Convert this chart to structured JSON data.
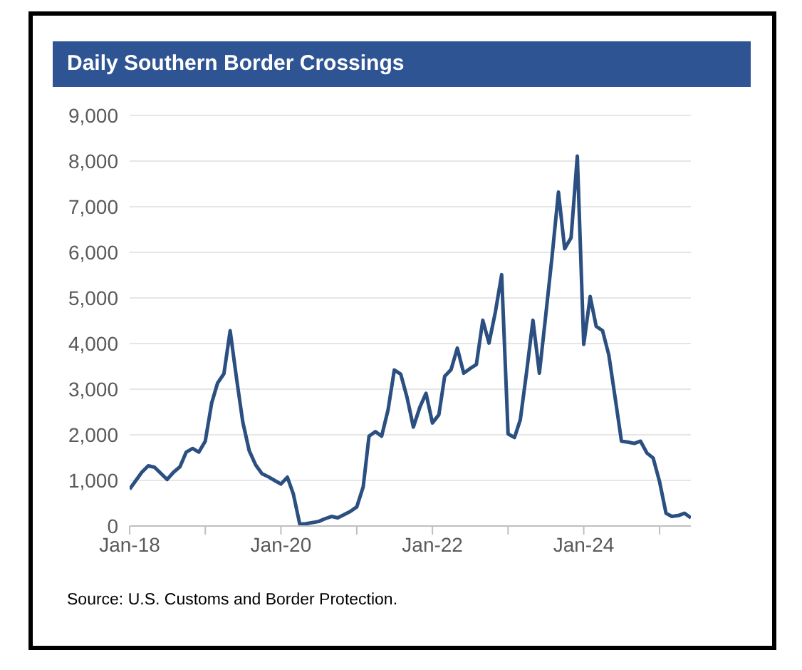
{
  "chart_data": {
    "type": "line",
    "title": "Daily Southern Border Crossings",
    "x": [
      "2018-01",
      "2018-03",
      "2018-04",
      "2018-05",
      "2018-07",
      "2018-08",
      "2018-09",
      "2018-10",
      "2018-11",
      "2018-12",
      "2019-01",
      "2019-02",
      "2019-03",
      "2019-04",
      "2019-05",
      "2019-06",
      "2019-07",
      "2019-08",
      "2019-09",
      "2019-10",
      "2019-11",
      "2019-12",
      "2020-01",
      "2020-02",
      "2020-03",
      "2020-04",
      "2020-05",
      "2020-07",
      "2020-08",
      "2020-09",
      "2020-10",
      "2020-11",
      "2020-12",
      "2021-01",
      "2021-02",
      "2021-03",
      "2021-04",
      "2021-05",
      "2021-06",
      "2021-07",
      "2021-08",
      "2021-09",
      "2021-10",
      "2021-11",
      "2021-12",
      "2022-01",
      "2022-02",
      "2022-03",
      "2022-04",
      "2022-05",
      "2022-06",
      "2022-07",
      "2022-08",
      "2022-09",
      "2022-10",
      "2022-11",
      "2022-12",
      "2023-01",
      "2023-02",
      "2023-03",
      "2023-04",
      "2023-05",
      "2023-06",
      "2023-07",
      "2023-08",
      "2023-09",
      "2023-10",
      "2023-11",
      "2023-12",
      "2024-01",
      "2024-02",
      "2024-03",
      "2024-04",
      "2024-05",
      "2024-06",
      "2024-07",
      "2024-08",
      "2024-09",
      "2024-10",
      "2024-11",
      "2024-12",
      "2025-01",
      "2025-02",
      "2025-03",
      "2025-04",
      "2025-05",
      "2025-06"
    ],
    "series": [
      {
        "color": "#2b4f81",
        "values": [
          810,
          1180,
          1320,
          1290,
          1020,
          1180,
          1300,
          1620,
          1700,
          1620,
          1860,
          2700,
          3130,
          3340,
          4280,
          3230,
          2280,
          1650,
          1340,
          1150,
          1080,
          1000,
          920,
          1070,
          700,
          40,
          50,
          100,
          160,
          210,
          180,
          250,
          320,
          420,
          860,
          1970,
          2070,
          1970,
          2550,
          3420,
          3330,
          2810,
          2170,
          2600,
          2910,
          2260,
          2440,
          3280,
          3430,
          3900,
          3350,
          3450,
          3540,
          4510,
          4010,
          4700,
          5510,
          2020,
          1940,
          2330,
          3400,
          4510,
          3350,
          4590,
          5900,
          7320,
          6080,
          6320,
          8110,
          3980,
          5030,
          4380,
          4280,
          3750,
          2800,
          1860,
          1840,
          1810,
          1860,
          1600,
          1490,
          970,
          280,
          210,
          230,
          280,
          180
        ]
      }
    ],
    "xlim": [
      "2018-01",
      "2025-06"
    ],
    "xticks": [
      {
        "value": "2018-01",
        "label": "Jan-18"
      },
      {
        "value": "2019-01",
        "label": null
      },
      {
        "value": "2020-01",
        "label": "Jan-20"
      },
      {
        "value": "2021-01",
        "label": null
      },
      {
        "value": "2022-01",
        "label": "Jan-22"
      },
      {
        "value": "2023-01",
        "label": null
      },
      {
        "value": "2024-01",
        "label": "Jan-24"
      },
      {
        "value": "2025-01",
        "label": null
      }
    ],
    "ylim": [
      0,
      9000
    ],
    "yticks": [
      0,
      {
        "value": 1000,
        "label": "1,000"
      },
      {
        "value": 2000,
        "label": "2,000"
      },
      {
        "value": 3000,
        "label": "3,000"
      },
      {
        "value": 4000,
        "label": "4,000"
      },
      {
        "value": 5000,
        "label": "5,000"
      },
      {
        "value": 6000,
        "label": "6,000"
      },
      {
        "value": 7000,
        "label": "7,000"
      },
      {
        "value": 8000,
        "label": "8,000"
      },
      {
        "value": 9000,
        "label": "9,000"
      }
    ],
    "grid": "y",
    "legend": false,
    "marker": "none",
    "line_style": "solid",
    "annotations": [
      "Source: U.S. Customs and Border Protection."
    ]
  }
}
